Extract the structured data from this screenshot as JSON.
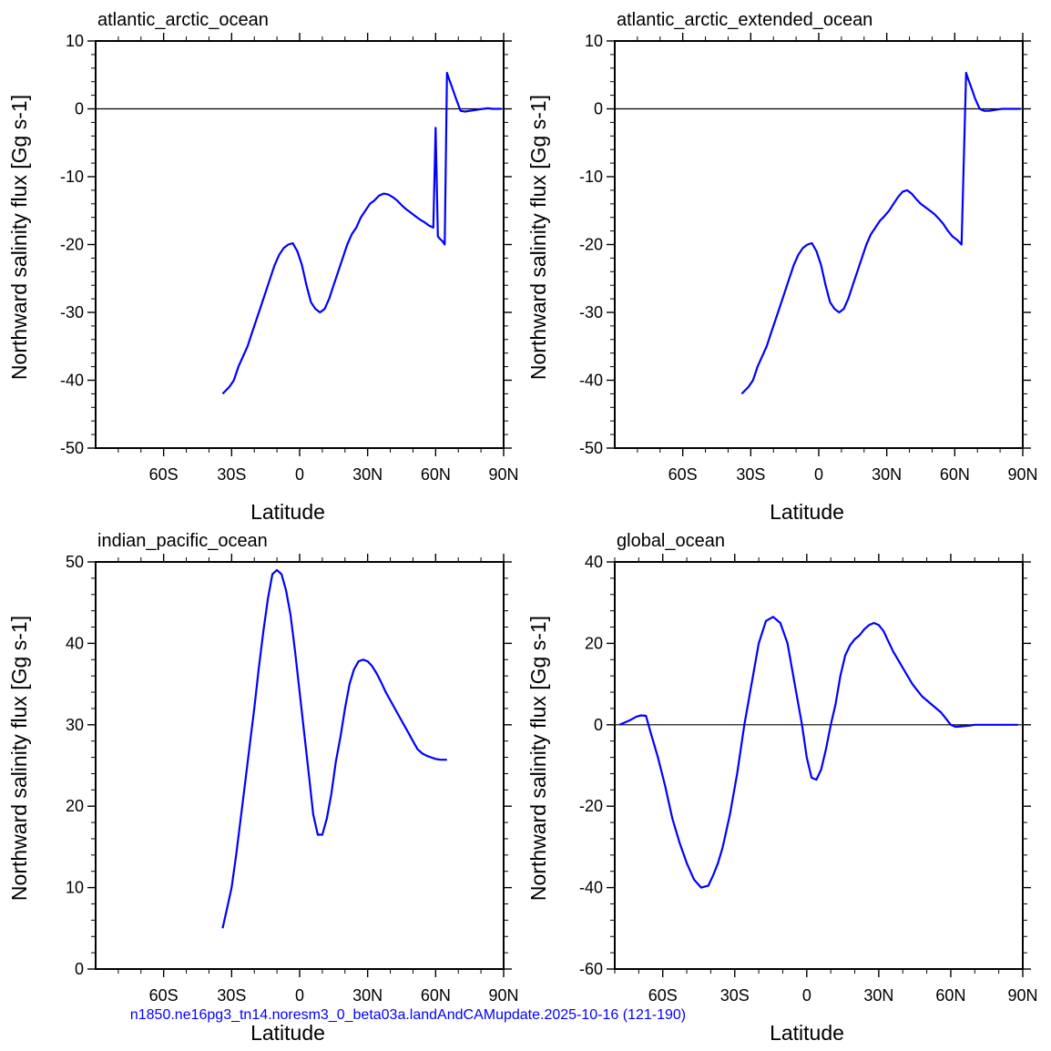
{
  "footer": "n1850.ne16pg3_tn14.noresm3_0_beta03a.landAndCAMupdate.2025-10-16 (121-190)",
  "colors": {
    "series": "#0000ff",
    "axis": "#000000",
    "footer": "#0000ff"
  },
  "chart_data": [
    {
      "type": "line",
      "title": "atlantic_arctic_ocean",
      "xlabel": "Latitude",
      "ylabel": "Northward salinity flux [Gg s-1]",
      "xlim": [
        -90,
        90
      ],
      "ylim": [
        -50,
        10
      ],
      "yticks": [
        -50,
        -40,
        -30,
        -20,
        -10,
        0,
        10
      ],
      "ytick_labels": [
        "-50",
        "-40",
        "-30",
        "-20",
        "-10",
        "0",
        "10"
      ],
      "xticks": [
        -60,
        -30,
        0,
        30,
        60,
        90
      ],
      "xtick_labels": [
        "60S",
        "30S",
        "0",
        "30N",
        "60N",
        "90N"
      ],
      "zero_line": true,
      "grid": false,
      "series": [
        {
          "x": [
            -34,
            -31,
            -29,
            -27,
            -25,
            -23,
            -21,
            -19,
            -17,
            -15,
            -13,
            -11,
            -9,
            -7,
            -5,
            -3,
            -1,
            1,
            3,
            5,
            7,
            9,
            11,
            13,
            15,
            17,
            19,
            21,
            23,
            25,
            27,
            29,
            31,
            33,
            35,
            37,
            39,
            41,
            43,
            45,
            47,
            49,
            51,
            53,
            55,
            57,
            59,
            60,
            61,
            62,
            63,
            64,
            65,
            66,
            67,
            69,
            71,
            73,
            75,
            77,
            79,
            81,
            83,
            85,
            87,
            89
          ],
          "y": [
            -42,
            -41,
            -40,
            -38,
            -36.5,
            -35,
            -33,
            -31,
            -29,
            -27,
            -25,
            -23,
            -21.5,
            -20.5,
            -20,
            -19.8,
            -21,
            -23,
            -26,
            -28.5,
            -29.5,
            -30,
            -29.5,
            -28,
            -26,
            -24,
            -22,
            -20,
            -18.5,
            -17.5,
            -16,
            -15,
            -14,
            -13.5,
            -12.8,
            -12.5,
            -12.6,
            -13,
            -13.5,
            -14.2,
            -14.8,
            -15.3,
            -15.8,
            -16.3,
            -16.7,
            -17.2,
            -17.5,
            -2.8,
            -18.8,
            -19.2,
            -19.5,
            -20,
            5.3,
            4.3,
            3.4,
            1.5,
            -0.3,
            -0.4,
            -0.3,
            -0.2,
            -0.1,
            0,
            0.1,
            0,
            0,
            0
          ]
        }
      ]
    },
    {
      "type": "line",
      "title": "atlantic_arctic_extended_ocean",
      "xlabel": "Latitude",
      "ylabel": "Northward salinity flux [Gg s-1]",
      "xlim": [
        -90,
        90
      ],
      "ylim": [
        -50,
        10
      ],
      "yticks": [
        -50,
        -40,
        -30,
        -20,
        -10,
        0,
        10
      ],
      "ytick_labels": [
        "-50",
        "-40",
        "-30",
        "-20",
        "-10",
        "0",
        "10"
      ],
      "xticks": [
        -60,
        -30,
        0,
        30,
        60,
        90
      ],
      "xtick_labels": [
        "60S",
        "30S",
        "0",
        "30N",
        "60N",
        "90N"
      ],
      "zero_line": true,
      "grid": false,
      "series": [
        {
          "x": [
            -34,
            -31,
            -29,
            -27,
            -25,
            -23,
            -21,
            -19,
            -17,
            -15,
            -13,
            -11,
            -9,
            -7,
            -5,
            -3,
            -1,
            1,
            3,
            5,
            7,
            9,
            11,
            13,
            15,
            17,
            19,
            21,
            23,
            25,
            27,
            29,
            31,
            33,
            35,
            37,
            39,
            41,
            43,
            45,
            47,
            49,
            51,
            53,
            55,
            57,
            59,
            61,
            63,
            65,
            66,
            67,
            69,
            71,
            73,
            75,
            77,
            79,
            81,
            83,
            85,
            87,
            89
          ],
          "y": [
            -42,
            -41,
            -40,
            -38,
            -36.5,
            -35,
            -33,
            -31,
            -29,
            -27,
            -25,
            -23,
            -21.5,
            -20.5,
            -20,
            -19.8,
            -21,
            -23,
            -26,
            -28.5,
            -29.5,
            -30,
            -29.5,
            -28,
            -26,
            -24,
            -22,
            -20,
            -18.5,
            -17.5,
            -16.5,
            -15.8,
            -15,
            -14,
            -13,
            -12.2,
            -12,
            -12.5,
            -13.3,
            -14,
            -14.5,
            -15,
            -15.5,
            -16.2,
            -17,
            -18,
            -18.8,
            -19.3,
            -20,
            5.3,
            4.3,
            3.4,
            1.5,
            0,
            -0.3,
            -0.3,
            -0.2,
            -0.1,
            0,
            0,
            0,
            0,
            0
          ]
        }
      ]
    },
    {
      "type": "line",
      "title": "indian_pacific_ocean",
      "xlabel": "Latitude",
      "ylabel": "Northward salinity flux [Gg s-1]",
      "xlim": [
        -90,
        90
      ],
      "ylim": [
        0,
        50
      ],
      "yticks": [
        0,
        10,
        20,
        30,
        40,
        50
      ],
      "ytick_labels": [
        "0",
        "10",
        "20",
        "30",
        "40",
        "50"
      ],
      "xticks": [
        -60,
        -30,
        0,
        30,
        60,
        90
      ],
      "xtick_labels": [
        "60S",
        "30S",
        "0",
        "30N",
        "60N",
        "90N"
      ],
      "zero_line": false,
      "grid": false,
      "series": [
        {
          "x": [
            -34,
            -32,
            -30,
            -28,
            -26,
            -24,
            -22,
            -20,
            -18,
            -16,
            -14,
            -12,
            -10,
            -8,
            -6,
            -4,
            -2,
            0,
            2,
            4,
            6,
            8,
            10,
            12,
            14,
            16,
            18,
            20,
            22,
            24,
            26,
            28,
            30,
            32,
            34,
            36,
            38,
            40,
            42,
            44,
            46,
            48,
            50,
            52,
            54,
            56,
            58,
            60,
            62,
            64,
            65
          ],
          "y": [
            5,
            7.5,
            10,
            14,
            18.5,
            23,
            27.5,
            32,
            37,
            41.5,
            45.5,
            48.5,
            49,
            48.5,
            46.5,
            43.5,
            39,
            34,
            29,
            24,
            19,
            16.5,
            16.5,
            18.5,
            21.5,
            25.5,
            28.5,
            32,
            35,
            36.8,
            37.8,
            38,
            37.8,
            37.2,
            36.3,
            35.2,
            34,
            33,
            32,
            31,
            30,
            29,
            28,
            27,
            26.5,
            26.2,
            26,
            25.8,
            25.7,
            25.7,
            25.7
          ]
        }
      ]
    },
    {
      "type": "line",
      "title": "global_ocean",
      "xlabel": "Latitude",
      "ylabel": "Northward salinity flux [Gg s-1]",
      "xlim": [
        -80,
        90
      ],
      "ylim": [
        -60,
        40
      ],
      "yticks": [
        -60,
        -40,
        -20,
        0,
        20,
        40
      ],
      "ytick_labels": [
        "-60",
        "-40",
        "-20",
        "0",
        "20",
        "40"
      ],
      "xticks": [
        -60,
        -30,
        0,
        30,
        60,
        90
      ],
      "xtick_labels": [
        "60S",
        "30S",
        "0",
        "30N",
        "60N",
        "90N"
      ],
      "zero_line": true,
      "grid": false,
      "series": [
        {
          "x": [
            -78,
            -74,
            -71,
            -69,
            -67,
            -65,
            -62,
            -59,
            -56,
            -53,
            -50,
            -47,
            -44,
            -41,
            -39,
            -37,
            -35,
            -32,
            -29,
            -26,
            -23,
            -20,
            -17,
            -14,
            -11,
            -8,
            -5,
            -2,
            0,
            2,
            4,
            6,
            8,
            10,
            12,
            14,
            16,
            18,
            20,
            22,
            24,
            26,
            28,
            30,
            32,
            34,
            36,
            38,
            40,
            42,
            44,
            46,
            48,
            50,
            52,
            54,
            56,
            58,
            60,
            62,
            64,
            66,
            68,
            70,
            72,
            74,
            76,
            78,
            80,
            82,
            84,
            86,
            88
          ],
          "y": [
            0,
            1,
            2,
            2.3,
            2.2,
            -2,
            -8,
            -15,
            -23,
            -29,
            -34,
            -38,
            -40,
            -39.5,
            -37,
            -34,
            -30,
            -22,
            -12,
            0,
            10,
            20,
            25.5,
            26.5,
            25,
            20,
            10,
            0,
            -8,
            -13,
            -13.5,
            -11,
            -6,
            0,
            5,
            12,
            17,
            19.5,
            21,
            22,
            23.5,
            24.5,
            25,
            24.5,
            23,
            20.5,
            18,
            16,
            14,
            12,
            10,
            8.5,
            7,
            6,
            5,
            4,
            3,
            1.5,
            0,
            -0.5,
            -0.4,
            -0.3,
            -0.2,
            0,
            0,
            0,
            0,
            0,
            0,
            0,
            0,
            0,
            0
          ]
        }
      ]
    }
  ]
}
